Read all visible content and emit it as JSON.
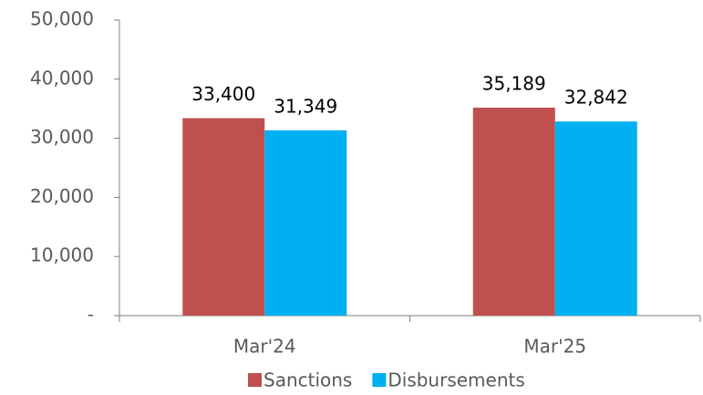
{
  "chart_data": {
    "type": "bar",
    "categories": [
      "Mar'24",
      "Mar'25"
    ],
    "series": [
      {
        "name": "Sanctions",
        "color": "#c0504d",
        "values": [
          33400,
          35189
        ],
        "value_labels": [
          "33,400",
          "35,189"
        ]
      },
      {
        "name": "Disbursements",
        "color": "#00b0f0",
        "values": [
          31349,
          32842
        ],
        "value_labels": [
          "31,349",
          "32,842"
        ]
      }
    ],
    "ylim": [
      0,
      50000
    ],
    "yticks": [
      {
        "value": 0,
        "label": "-"
      },
      {
        "value": 10000,
        "label": "10,000"
      },
      {
        "value": 20000,
        "label": "20,000"
      },
      {
        "value": 30000,
        "label": "30,000"
      },
      {
        "value": 40000,
        "label": "40,000"
      },
      {
        "value": 50000,
        "label": "50,000"
      }
    ],
    "grid": false,
    "legend": "bottom"
  }
}
